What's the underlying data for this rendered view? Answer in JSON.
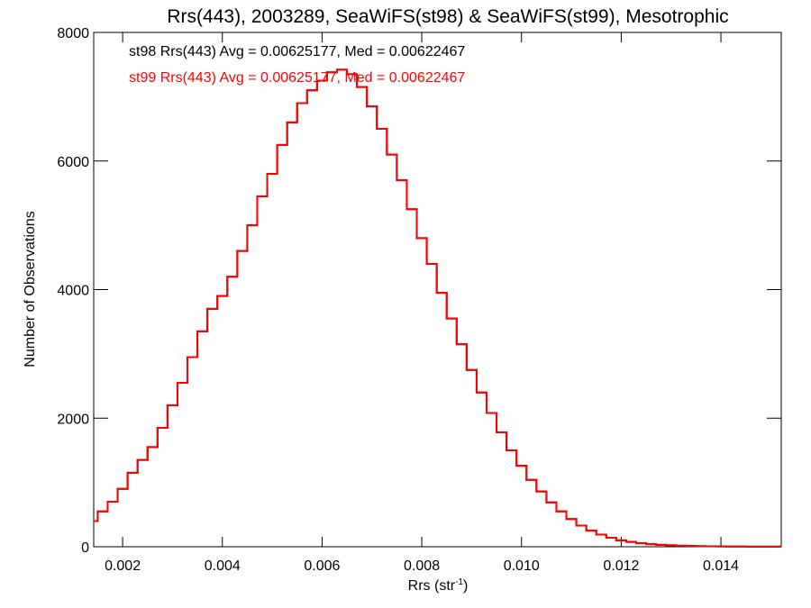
{
  "chart_data": {
    "type": "line",
    "title": "Rrs(443), 2003289, SeaWiFS(st98) & SeaWiFS(st99), Mesotrophic",
    "xlabel": "Rrs (str",
    "xlabel_sup": "-1",
    "xlabel_close": ")",
    "ylabel": "Number of Observations",
    "xlim": [
      0.00142,
      0.01521
    ],
    "ylim": [
      0,
      8000
    ],
    "x_ticks": [
      0.002,
      0.004,
      0.006,
      0.008,
      0.01,
      0.012,
      0.014
    ],
    "x_tick_labels": [
      "0.002",
      "0.004",
      "0.006",
      "0.008",
      "0.010",
      "0.012",
      "0.014"
    ],
    "y_ticks": [
      0,
      2000,
      4000,
      6000,
      8000
    ],
    "y_tick_labels": [
      "0",
      "2000",
      "4000",
      "6000",
      "8000"
    ],
    "grid": false,
    "annotations": [
      {
        "text": "st98 Rrs(443) Avg = 0.00625177, Med = 0.00622467",
        "color": "#000000"
      },
      {
        "text": "st99 Rrs(443) Avg = 0.00625177, Med = 0.00622467",
        "color": "#ff0000"
      }
    ],
    "series": [
      {
        "name": "st98",
        "color": "#000000",
        "x": [
          0.0014,
          0.0016,
          0.0018,
          0.002,
          0.0022,
          0.0024,
          0.0026,
          0.0028,
          0.003,
          0.0032,
          0.0034,
          0.0036,
          0.0038,
          0.004,
          0.0042,
          0.0044,
          0.0046,
          0.0048,
          0.005,
          0.0052,
          0.0054,
          0.0056,
          0.0058,
          0.006,
          0.0062,
          0.0064,
          0.0066,
          0.0068,
          0.007,
          0.0072,
          0.0074,
          0.0076,
          0.0078,
          0.008,
          0.0082,
          0.0084,
          0.0086,
          0.0088,
          0.009,
          0.0092,
          0.0094,
          0.0096,
          0.0098,
          0.01,
          0.0102,
          0.0104,
          0.0106,
          0.0108,
          0.011,
          0.0112,
          0.0114,
          0.0116,
          0.0118,
          0.012,
          0.0122,
          0.0124,
          0.0126,
          0.0128,
          0.013,
          0.0132,
          0.0134,
          0.0136,
          0.0138,
          0.014,
          0.0142,
          0.0144,
          0.0146,
          0.0148,
          0.015,
          0.0152
        ],
        "y": [
          400,
          550,
          700,
          900,
          1150,
          1350,
          1550,
          1850,
          2200,
          2550,
          2950,
          3350,
          3700,
          3900,
          4200,
          4600,
          5000,
          5450,
          5800,
          6250,
          6600,
          6900,
          7100,
          7250,
          7380,
          7420,
          7350,
          7150,
          6850,
          6500,
          6100,
          5700,
          5250,
          4800,
          4400,
          3950,
          3550,
          3150,
          2750,
          2400,
          2080,
          1780,
          1500,
          1260,
          1040,
          860,
          690,
          550,
          430,
          330,
          250,
          190,
          140,
          100,
          75,
          55,
          40,
          30,
          22,
          16,
          12,
          9,
          7,
          5,
          4,
          3,
          2,
          2,
          1,
          1
        ]
      },
      {
        "name": "st99",
        "color": "#ff0000",
        "x": [
          0.0014,
          0.0016,
          0.0018,
          0.002,
          0.0022,
          0.0024,
          0.0026,
          0.0028,
          0.003,
          0.0032,
          0.0034,
          0.0036,
          0.0038,
          0.004,
          0.0042,
          0.0044,
          0.0046,
          0.0048,
          0.005,
          0.0052,
          0.0054,
          0.0056,
          0.0058,
          0.006,
          0.0062,
          0.0064,
          0.0066,
          0.0068,
          0.007,
          0.0072,
          0.0074,
          0.0076,
          0.0078,
          0.008,
          0.0082,
          0.0084,
          0.0086,
          0.0088,
          0.009,
          0.0092,
          0.0094,
          0.0096,
          0.0098,
          0.01,
          0.0102,
          0.0104,
          0.0106,
          0.0108,
          0.011,
          0.0112,
          0.0114,
          0.0116,
          0.0118,
          0.012,
          0.0122,
          0.0124,
          0.0126,
          0.0128,
          0.013,
          0.0132,
          0.0134,
          0.0136,
          0.0138,
          0.014,
          0.0142,
          0.0144,
          0.0146,
          0.0148,
          0.015,
          0.0152
        ],
        "y": [
          400,
          550,
          700,
          900,
          1150,
          1350,
          1550,
          1850,
          2200,
          2550,
          2950,
          3350,
          3700,
          3900,
          4200,
          4600,
          5000,
          5450,
          5800,
          6250,
          6600,
          6900,
          7100,
          7250,
          7380,
          7420,
          7350,
          7150,
          6850,
          6500,
          6100,
          5700,
          5250,
          4800,
          4400,
          3950,
          3550,
          3150,
          2750,
          2400,
          2080,
          1780,
          1500,
          1260,
          1040,
          860,
          690,
          550,
          430,
          330,
          250,
          190,
          140,
          100,
          75,
          55,
          40,
          30,
          22,
          16,
          12,
          9,
          7,
          5,
          4,
          3,
          2,
          2,
          1,
          1
        ]
      }
    ]
  }
}
